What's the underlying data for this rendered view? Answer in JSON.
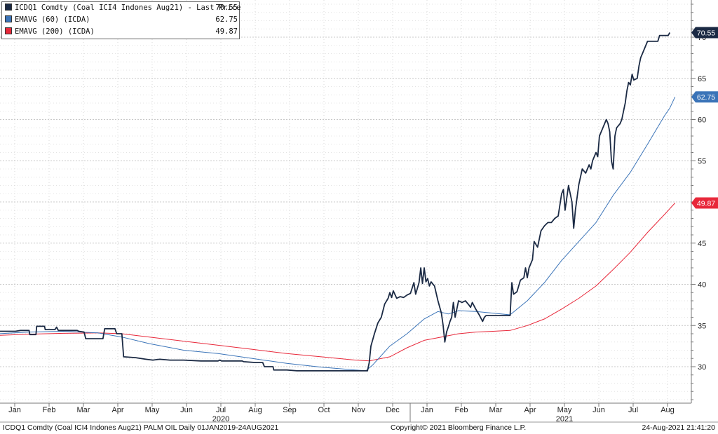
{
  "legend": [
    {
      "label": "ICDQ1 Comdty (Coal ICI4 Indones Aug21) - Last Price",
      "value": "70.55",
      "color": "#1b2a44"
    },
    {
      "label": "EMAVG (60) (ICDA)",
      "value": "62.75",
      "color": "#3b74b8"
    },
    {
      "label": "EMAVG (200) (ICDA)",
      "value": "49.87",
      "color": "#e8283a"
    }
  ],
  "footer": {
    "left": "ICDQ1 Comdty (Coal ICI4 Indones Aug21) PALM OIL  Daily 01JAN2019-24AUG2021",
    "center": "Copyright© 2021 Bloomberg Finance L.P.",
    "right": "24-Aug-2021 21:41:20"
  },
  "chart_data": {
    "type": "line",
    "title": "",
    "xlabel": "",
    "ylabel": "",
    "ylim": [
      25.5,
      75
    ],
    "yticks": [
      30,
      35,
      40,
      45,
      50,
      55,
      60,
      65,
      70
    ],
    "grid": true,
    "legend_position": "top-left",
    "x_tick_labels": [
      "Jan",
      "Feb",
      "Mar",
      "Apr",
      "May",
      "Jun",
      "Jul",
      "Aug",
      "Sep",
      "Oct",
      "Nov",
      "Dec",
      "Jan",
      "Feb",
      "Mar",
      "Apr",
      "May",
      "Jun",
      "Jul",
      "Aug"
    ],
    "year_labels": [
      {
        "label": "2020",
        "month_index": 6
      },
      {
        "label": "2021",
        "month_index": 16
      }
    ],
    "x_unit": "months since Jan 2020",
    "series": [
      {
        "name": "ICDQ1 Comdty (Coal ICI4 Indones Aug21) - Last Price",
        "color": "#1b2a44",
        "last_value": "70.55",
        "points": [
          [
            -0.4,
            34.3
          ],
          [
            0.1,
            34.3
          ],
          [
            0.25,
            34.4
          ],
          [
            0.5,
            34.4
          ],
          [
            0.52,
            33.9
          ],
          [
            0.7,
            33.9
          ],
          [
            0.72,
            34.9
          ],
          [
            0.95,
            34.9
          ],
          [
            0.97,
            34.5
          ],
          [
            1.25,
            34.5
          ],
          [
            1.3,
            34.8
          ],
          [
            1.35,
            34.4
          ],
          [
            1.9,
            34.4
          ],
          [
            1.95,
            34.3
          ],
          [
            2.1,
            34.2
          ],
          [
            2.15,
            33.4
          ],
          [
            2.65,
            33.4
          ],
          [
            2.7,
            34.6
          ],
          [
            3.0,
            34.6
          ],
          [
            3.05,
            34.0
          ],
          [
            3.2,
            34.0
          ],
          [
            3.25,
            31.2
          ],
          [
            3.6,
            31.1
          ],
          [
            3.9,
            30.9
          ],
          [
            4.1,
            30.8
          ],
          [
            4.3,
            30.9
          ],
          [
            4.6,
            30.8
          ],
          [
            5.0,
            30.8
          ],
          [
            5.5,
            30.7
          ],
          [
            6.0,
            30.7
          ],
          [
            6.05,
            30.8
          ],
          [
            6.1,
            30.7
          ],
          [
            6.7,
            30.7
          ],
          [
            6.75,
            30.6
          ],
          [
            7.1,
            30.5
          ],
          [
            7.3,
            30.5
          ],
          [
            7.35,
            30.0
          ],
          [
            7.6,
            30.0
          ],
          [
            7.62,
            29.6
          ],
          [
            8.0,
            29.6
          ],
          [
            8.3,
            29.5
          ],
          [
            9.0,
            29.5
          ],
          [
            9.5,
            29.5
          ],
          [
            10.0,
            29.5
          ],
          [
            10.35,
            29.5
          ],
          [
            10.4,
            30.5
          ],
          [
            10.45,
            32.5
          ],
          [
            10.55,
            34.0
          ],
          [
            10.65,
            35.3
          ],
          [
            10.75,
            36.0
          ],
          [
            10.85,
            37.6
          ],
          [
            10.95,
            38.3
          ],
          [
            11.0,
            39.0
          ],
          [
            11.05,
            38.4
          ],
          [
            11.1,
            39.2
          ],
          [
            11.2,
            38.3
          ],
          [
            11.3,
            38.5
          ],
          [
            11.4,
            38.4
          ],
          [
            11.5,
            38.7
          ],
          [
            11.6,
            38.9
          ],
          [
            11.7,
            40.2
          ],
          [
            11.75,
            38.8
          ],
          [
            11.85,
            40.2
          ],
          [
            11.9,
            42.0
          ],
          [
            11.95,
            40.1
          ],
          [
            12.0,
            42.0
          ],
          [
            12.05,
            40.3
          ],
          [
            12.1,
            40.7
          ],
          [
            12.15,
            39.8
          ],
          [
            12.2,
            40.3
          ],
          [
            12.3,
            39.8
          ],
          [
            12.4,
            38.0
          ],
          [
            12.5,
            36.5
          ],
          [
            12.55,
            35.0
          ],
          [
            12.6,
            33.0
          ],
          [
            12.65,
            34.2
          ],
          [
            12.7,
            34.8
          ],
          [
            12.75,
            35.5
          ],
          [
            12.8,
            36.0
          ],
          [
            12.85,
            37.8
          ],
          [
            12.9,
            36.0
          ],
          [
            12.95,
            37.0
          ],
          [
            13.0,
            38.0
          ],
          [
            13.1,
            37.8
          ],
          [
            13.2,
            38.0
          ],
          [
            13.3,
            37.5
          ],
          [
            13.35,
            37.2
          ],
          [
            13.4,
            37.8
          ],
          [
            13.5,
            37.0
          ],
          [
            13.6,
            36.3
          ],
          [
            13.7,
            35.5
          ],
          [
            13.75,
            36.0
          ],
          [
            13.8,
            36.2
          ],
          [
            14.0,
            36.2
          ],
          [
            14.4,
            36.2
          ],
          [
            14.5,
            36.2
          ],
          [
            14.55,
            40.2
          ],
          [
            14.6,
            38.8
          ],
          [
            14.7,
            39.1
          ],
          [
            14.8,
            40.5
          ],
          [
            14.9,
            40.8
          ],
          [
            14.95,
            42.0
          ],
          [
            15.0,
            40.8
          ],
          [
            15.05,
            42.0
          ],
          [
            15.15,
            43.0
          ],
          [
            15.2,
            45.2
          ],
          [
            15.3,
            44.5
          ],
          [
            15.4,
            46.5
          ],
          [
            15.5,
            47.1
          ],
          [
            15.6,
            47.5
          ],
          [
            15.7,
            47.5
          ],
          [
            15.8,
            48.0
          ],
          [
            15.9,
            48.3
          ],
          [
            16.0,
            51.0
          ],
          [
            16.05,
            51.5
          ],
          [
            16.1,
            49.0
          ],
          [
            16.2,
            52.0
          ],
          [
            16.3,
            50.0
          ],
          [
            16.35,
            46.8
          ],
          [
            16.4,
            49.0
          ],
          [
            16.5,
            52.1
          ],
          [
            16.6,
            54.0
          ],
          [
            16.7,
            53.5
          ],
          [
            16.8,
            54.5
          ],
          [
            16.85,
            54.0
          ],
          [
            16.9,
            55.0
          ],
          [
            17.0,
            56.0
          ],
          [
            17.05,
            55.5
          ],
          [
            17.1,
            58.0
          ],
          [
            17.2,
            59.0
          ],
          [
            17.3,
            60.0
          ],
          [
            17.35,
            59.5
          ],
          [
            17.4,
            58.5
          ],
          [
            17.45,
            55.0
          ],
          [
            17.5,
            54.0
          ],
          [
            17.55,
            58.0
          ],
          [
            17.6,
            59.0
          ],
          [
            17.7,
            59.5
          ],
          [
            17.75,
            60.0
          ],
          [
            17.8,
            61.0
          ],
          [
            17.85,
            62.0
          ],
          [
            17.9,
            63.5
          ],
          [
            17.95,
            64.5
          ],
          [
            18.0,
            64.2
          ],
          [
            18.05,
            65.5
          ],
          [
            18.1,
            64.8
          ],
          [
            18.2,
            65.0
          ],
          [
            18.25,
            66.5
          ],
          [
            18.3,
            67.5
          ],
          [
            18.35,
            68.0
          ],
          [
            18.5,
            69.5
          ],
          [
            18.6,
            69.5
          ],
          [
            18.8,
            69.5
          ],
          [
            18.85,
            70.2
          ],
          [
            19.1,
            70.2
          ],
          [
            19.15,
            70.55
          ]
        ]
      },
      {
        "name": "EMAVG (60) (ICDA)",
        "color": "#3b74b8",
        "last_value": "62.75",
        "points": [
          [
            -0.4,
            34.0
          ],
          [
            0.5,
            34.2
          ],
          [
            1.5,
            34.3
          ],
          [
            2.5,
            34.1
          ],
          [
            3.2,
            33.6
          ],
          [
            4.0,
            32.8
          ],
          [
            5.0,
            32.0
          ],
          [
            6.0,
            31.6
          ],
          [
            7.0,
            31.0
          ],
          [
            8.0,
            30.4
          ],
          [
            9.0,
            29.95
          ],
          [
            10.0,
            29.6
          ],
          [
            10.3,
            29.5
          ],
          [
            10.5,
            30.2
          ],
          [
            11.0,
            32.5
          ],
          [
            11.5,
            34.0
          ],
          [
            12.0,
            35.8
          ],
          [
            12.4,
            36.7
          ],
          [
            12.7,
            36.4
          ],
          [
            13.0,
            36.8
          ],
          [
            13.5,
            36.7
          ],
          [
            14.0,
            36.5
          ],
          [
            14.5,
            36.3
          ],
          [
            15.0,
            38.0
          ],
          [
            15.5,
            40.2
          ],
          [
            16.0,
            42.9
          ],
          [
            16.5,
            45.2
          ],
          [
            17.0,
            47.5
          ],
          [
            17.5,
            50.8
          ],
          [
            18.0,
            53.6
          ],
          [
            18.5,
            57.0
          ],
          [
            19.0,
            60.5
          ],
          [
            19.15,
            61.4
          ],
          [
            19.3,
            62.75
          ]
        ]
      },
      {
        "name": "EMAVG (200) (ICDA)",
        "color": "#e8283a",
        "last_value": "49.87",
        "points": [
          [
            -0.4,
            33.8
          ],
          [
            0.5,
            33.95
          ],
          [
            1.5,
            34.05
          ],
          [
            2.5,
            34.1
          ],
          [
            3.2,
            34.0
          ],
          [
            4.0,
            33.6
          ],
          [
            5.0,
            33.1
          ],
          [
            6.0,
            32.6
          ],
          [
            7.0,
            32.1
          ],
          [
            8.0,
            31.6
          ],
          [
            9.0,
            31.2
          ],
          [
            10.0,
            30.8
          ],
          [
            10.4,
            30.7
          ],
          [
            11.0,
            31.2
          ],
          [
            11.5,
            32.3
          ],
          [
            12.0,
            33.2
          ],
          [
            12.5,
            33.6
          ],
          [
            13.0,
            34.0
          ],
          [
            13.5,
            34.2
          ],
          [
            14.0,
            34.3
          ],
          [
            14.5,
            34.4
          ],
          [
            15.0,
            35.0
          ],
          [
            15.5,
            35.8
          ],
          [
            16.0,
            37.0
          ],
          [
            16.5,
            38.3
          ],
          [
            17.0,
            39.8
          ],
          [
            17.5,
            41.8
          ],
          [
            18.0,
            43.9
          ],
          [
            18.5,
            46.3
          ],
          [
            19.0,
            48.5
          ],
          [
            19.3,
            49.87
          ]
        ]
      }
    ]
  }
}
